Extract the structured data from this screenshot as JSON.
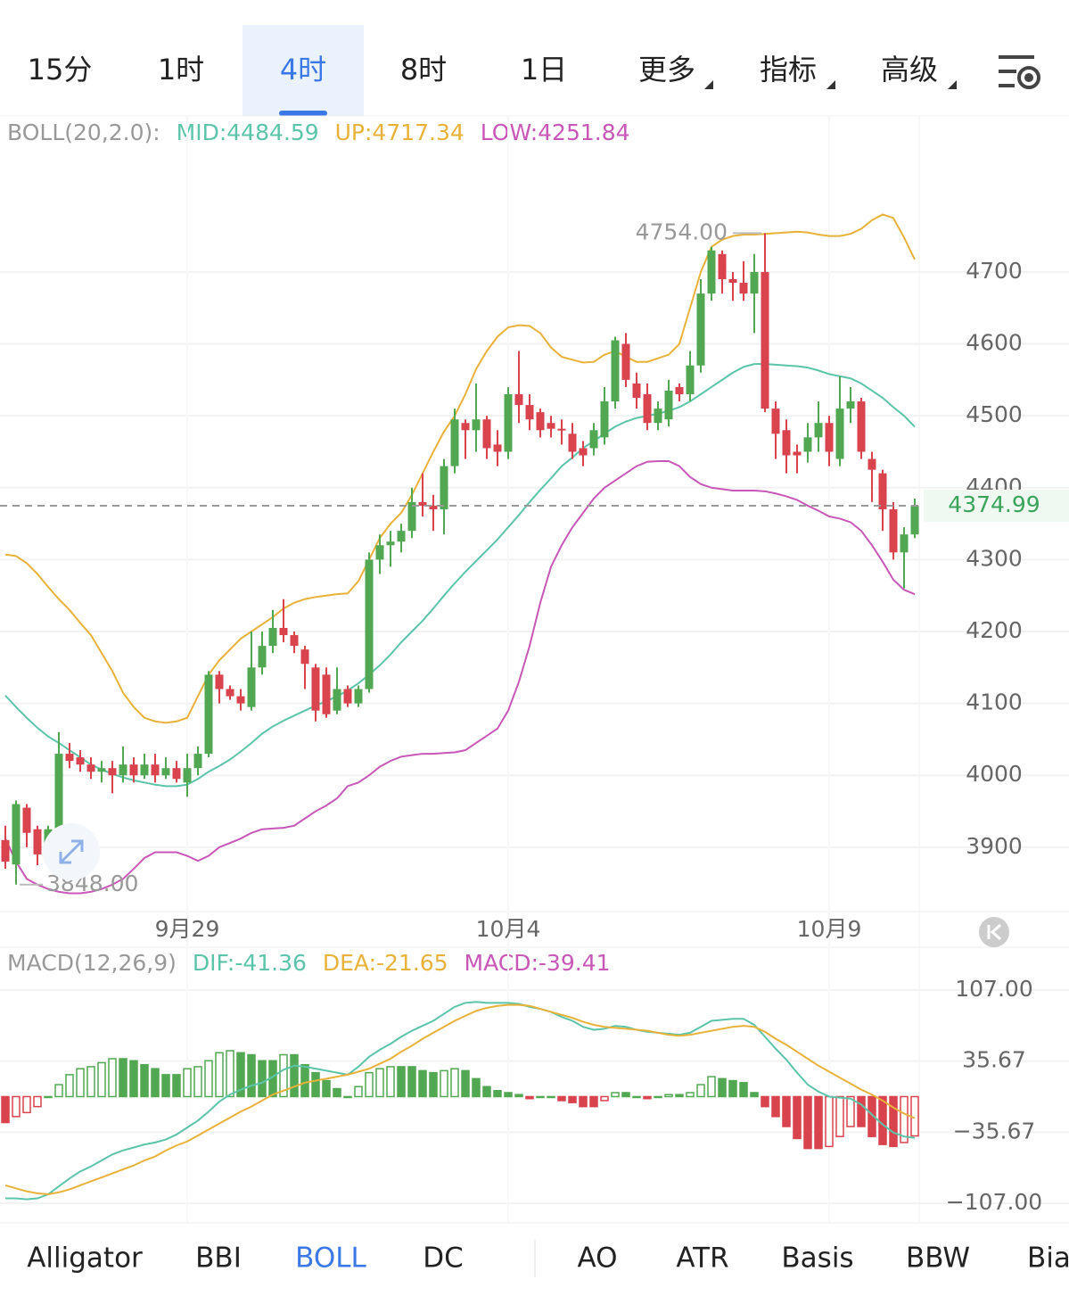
{
  "tabs": [
    "15分",
    "1时",
    "4时",
    "8时",
    "1日",
    "更多",
    "指标",
    "高级"
  ],
  "active_tab": "4时",
  "indicator_tabs": [
    "Alligator",
    "BBI",
    "BOLL",
    "DC",
    "AO",
    "ATR",
    "Basis",
    "BBW",
    "Bia"
  ],
  "active_indicator": "BOLL",
  "chart_data": [
    {
      "type": "candlestick",
      "legend_title": "BOLL(20,2.0):",
      "categories": [
        null,
        null,
        null,
        null,
        null,
        null,
        null,
        null,
        null,
        null,
        null,
        null,
        null,
        null,
        null,
        null,
        null,
        "9月29",
        null,
        null,
        null,
        null,
        null,
        null,
        null,
        null,
        null,
        null,
        null,
        null,
        null,
        null,
        null,
        null,
        null,
        null,
        null,
        null,
        null,
        null,
        null,
        null,
        null,
        null,
        null,
        null,
        null,
        "10月4",
        null,
        null,
        null,
        null,
        null,
        null,
        null,
        null,
        null,
        null,
        null,
        null,
        null,
        null,
        null,
        null,
        null,
        null,
        null,
        null,
        null,
        null,
        null,
        null,
        null,
        null,
        null,
        null,
        null,
        "10月9",
        null,
        null,
        null,
        null,
        null,
        null,
        null,
        null
      ],
      "open": [
        3910,
        3876,
        3955,
        3925,
        3890,
        3925,
        4030,
        4025,
        4015,
        4005,
        4010,
        4000,
        4015,
        4000,
        4015,
        4000,
        4010,
        3990,
        4010,
        4030,
        4140,
        4120,
        4110,
        4095,
        4150,
        4180,
        4205,
        4195,
        4175,
        4150,
        4140,
        4090,
        4120,
        4100,
        4120,
        4300,
        4320,
        4325,
        4340,
        4380,
        4375,
        4370,
        4430,
        4490,
        4480,
        4495,
        4460,
        4450,
        4530,
        4515,
        4505,
        4490,
        4482,
        4475,
        4455,
        4455,
        4470,
        4520,
        4600,
        4545,
        4530,
        4490,
        4495,
        4540,
        4530,
        4570,
        4670,
        4725,
        4690,
        4685,
        4670,
        4700,
        4510,
        4480,
        4450,
        4450,
        4470,
        4490,
        4440,
        4510,
        4520,
        4440,
        4420,
        4370,
        4310,
        4335
      ],
      "high": [
        3930,
        3965,
        3960,
        3930,
        3930,
        4060,
        4045,
        4035,
        4025,
        4020,
        4020,
        4040,
        4025,
        4030,
        4030,
        4025,
        4020,
        4030,
        4040,
        4145,
        4145,
        4125,
        4120,
        4200,
        4200,
        4230,
        4245,
        4200,
        4180,
        4155,
        4150,
        4150,
        4125,
        4125,
        4310,
        4335,
        4340,
        4350,
        4400,
        4420,
        4390,
        4440,
        4510,
        4495,
        4545,
        4500,
        4480,
        4540,
        4590,
        4530,
        4510,
        4500,
        4495,
        4490,
        4465,
        4490,
        4540,
        4610,
        4615,
        4560,
        4545,
        4520,
        4550,
        4545,
        4590,
        4690,
        4735,
        4730,
        4700,
        4715,
        4725,
        4754,
        4520,
        4495,
        4460,
        4490,
        4520,
        4500,
        4555,
        4540,
        4525,
        4450,
        4425,
        4380,
        4345,
        4385
      ],
      "low": [
        3870,
        3848,
        3900,
        3875,
        3880,
        3920,
        4010,
        4005,
        3995,
        3990,
        3975,
        3990,
        3990,
        3995,
        3990,
        3995,
        3990,
        3970,
        4000,
        4025,
        4100,
        4105,
        4090,
        4090,
        4140,
        4170,
        4185,
        4170,
        4120,
        4075,
        4080,
        4085,
        4095,
        4095,
        4115,
        4280,
        4290,
        4310,
        4330,
        4360,
        4340,
        4335,
        4420,
        4440,
        4450,
        4440,
        4430,
        4440,
        4490,
        4480,
        4470,
        4470,
        4460,
        4440,
        4430,
        4445,
        4460,
        4510,
        4540,
        4510,
        4480,
        4480,
        4485,
        4520,
        4520,
        4560,
        4660,
        4670,
        4660,
        4660,
        4615,
        4505,
        4440,
        4420,
        4420,
        4435,
        4450,
        4430,
        4430,
        4490,
        4440,
        4380,
        4340,
        4300,
        4260,
        4330
      ],
      "close": [
        3880,
        3960,
        3920,
        3890,
        3925,
        4030,
        4020,
        4015,
        4005,
        4010,
        4000,
        4015,
        4000,
        4015,
        4000,
        4010,
        3995,
        4010,
        4030,
        4140,
        4120,
        4110,
        4100,
        4150,
        4180,
        4205,
        4195,
        4180,
        4155,
        4090,
        4085,
        4120,
        4100,
        4120,
        4300,
        4320,
        4325,
        4340,
        4380,
        4375,
        4370,
        4430,
        4495,
        4480,
        4495,
        4455,
        4450,
        4530,
        4515,
        4495,
        4480,
        4482,
        4480,
        4450,
        4445,
        4480,
        4520,
        4605,
        4550,
        4525,
        4490,
        4510,
        4535,
        4530,
        4570,
        4670,
        4730,
        4690,
        4685,
        4670,
        4700,
        4510,
        4475,
        4445,
        4445,
        4470,
        4490,
        4450,
        4510,
        4520,
        4450,
        4425,
        4370,
        4310,
        4335,
        4374.99
      ],
      "up_color": "#52a852",
      "down_color": "#d9434d",
      "series": [
        {
          "label": "MID:4484.59",
          "color": "#5bc4a9",
          "values": [
            4111,
            4095,
            4080,
            4066,
            4054,
            4045,
            4035,
            4025,
            4015,
            4008,
            4002,
            3997,
            3993,
            3990,
            3987,
            3985,
            3985,
            3987,
            3995,
            4005,
            4013,
            4022,
            4033,
            4045,
            4058,
            4068,
            4076,
            4083,
            4090,
            4097,
            4103,
            4110,
            4118,
            4128,
            4140,
            4153,
            4168,
            4185,
            4200,
            4215,
            4232,
            4250,
            4267,
            4283,
            4298,
            4313,
            4328,
            4345,
            4362,
            4380,
            4397,
            4413,
            4430,
            4442,
            4455,
            4465,
            4475,
            4485,
            4492,
            4497,
            4500,
            4503,
            4507,
            4512,
            4520,
            4530,
            4540,
            4550,
            4560,
            4568,
            4572,
            4572,
            4571,
            4570,
            4569,
            4567,
            4563,
            4558,
            4555,
            4552,
            4545,
            4535,
            4525,
            4512,
            4500,
            4484.59
          ]
        },
        {
          "label": "UP:4717.34",
          "color": "#e8b23a",
          "values": [
            4307,
            4305,
            4295,
            4280,
            4262,
            4245,
            4230,
            4212,
            4195,
            4170,
            4145,
            4115,
            4095,
            4080,
            4075,
            4073,
            4075,
            4080,
            4110,
            4140,
            4160,
            4175,
            4190,
            4200,
            4210,
            4220,
            4232,
            4240,
            4245,
            4248,
            4250,
            4252,
            4253,
            4270,
            4300,
            4330,
            4350,
            4365,
            4390,
            4420,
            4450,
            4478,
            4500,
            4530,
            4565,
            4590,
            4610,
            4623,
            4626,
            4625,
            4615,
            4595,
            4582,
            4578,
            4574,
            4575,
            4585,
            4590,
            4582,
            4575,
            4575,
            4580,
            4585,
            4600,
            4650,
            4700,
            4735,
            4745,
            4750,
            4752,
            4752,
            4753,
            4754,
            4755,
            4756,
            4755,
            4752,
            4750,
            4750,
            4753,
            4760,
            4772,
            4780,
            4775,
            4748,
            4717.34
          ]
        },
        {
          "label": "LOW:4251.84",
          "color": "#c957b8",
          "values": [
            3912,
            3880,
            3856,
            3848,
            3842,
            3838,
            3836,
            3836,
            3838,
            3842,
            3848,
            3856,
            3870,
            3885,
            3893,
            3893,
            3893,
            3888,
            3881,
            3888,
            3900,
            3906,
            3912,
            3920,
            3925,
            3926,
            3927,
            3930,
            3940,
            3950,
            3958,
            3968,
            3985,
            3990,
            4000,
            4012,
            4020,
            4026,
            4028,
            4030,
            4030,
            4031,
            4032,
            4035,
            4045,
            4055,
            4065,
            4090,
            4130,
            4180,
            4240,
            4290,
            4320,
            4345,
            4365,
            4385,
            4400,
            4410,
            4420,
            4430,
            4436,
            4437,
            4437,
            4430,
            4415,
            4405,
            4400,
            4398,
            4396,
            4396,
            4396,
            4395,
            4392,
            4388,
            4383,
            4375,
            4368,
            4360,
            4357,
            4352,
            4340,
            4320,
            4297,
            4272,
            4258,
            4251.84
          ]
        }
      ],
      "ylim": [
        3813,
        4917
      ],
      "yticks": [
        3900,
        4000,
        4100,
        4200,
        4300,
        4400,
        4500,
        4600,
        4700
      ],
      "max_label": {
        "value": 4754,
        "label": "4754.00"
      },
      "min_label": {
        "value": 3848,
        "label": "3848.00"
      },
      "last_price": 4374.99,
      "last_price_color": "#3aa55a",
      "grid": true
    },
    {
      "type": "macd",
      "legend_title": "MACD(12,26,9)",
      "series": [
        {
          "label": "DIF:-41.36",
          "color": "#5bc4a9",
          "values": [
            -102,
            -102,
            -103,
            -102,
            -98,
            -90,
            -82,
            -75,
            -70,
            -64,
            -58,
            -54,
            -51,
            -48,
            -46,
            -43,
            -38,
            -31,
            -24,
            -15,
            -5,
            2,
            7,
            11,
            14,
            20,
            27,
            31,
            30,
            28,
            26,
            24,
            22,
            30,
            40,
            47,
            53,
            60,
            66,
            71,
            76,
            83,
            90,
            94,
            95,
            94,
            94,
            94,
            93,
            90,
            88,
            85,
            80,
            76,
            70,
            67,
            68,
            71,
            70,
            67,
            65,
            64,
            63,
            62,
            64,
            70,
            76,
            77,
            78,
            78,
            72,
            60,
            48,
            37,
            24,
            12,
            5,
            0,
            -1,
            -2,
            -8,
            -18,
            -28,
            -36,
            -40,
            -41.36
          ]
        },
        {
          "label": "DEA:-21.65",
          "color": "#e8b23a",
          "values": [
            -89,
            -92,
            -95,
            -97,
            -98,
            -96,
            -93,
            -89,
            -85,
            -81,
            -77,
            -73,
            -69,
            -64,
            -60,
            -54,
            -49,
            -45,
            -39,
            -33,
            -27,
            -21,
            -15,
            -10,
            -4,
            2,
            6,
            10,
            14,
            16,
            18,
            20,
            22,
            25,
            28,
            33,
            38,
            45,
            51,
            58,
            64,
            70,
            76,
            81,
            86,
            89,
            91,
            92,
            92,
            91,
            88,
            85,
            82,
            79,
            75,
            72,
            70,
            69,
            68,
            67,
            66,
            64,
            62,
            61,
            62,
            64,
            66,
            68,
            70,
            71,
            70,
            65,
            58,
            52,
            45,
            38,
            31,
            25,
            19,
            13,
            7,
            2,
            -4,
            -11,
            -17,
            -21.65
          ]
        }
      ],
      "histogram": {
        "label": "MACD:-39.41",
        "color": "#c957b8",
        "values": [
          -26,
          -20,
          -16,
          -10,
          0,
          12,
          22,
          28,
          30,
          34,
          38,
          38,
          36,
          32,
          28,
          22,
          22,
          28,
          30,
          36,
          44,
          46,
          44,
          42,
          36,
          36,
          42,
          42,
          32,
          24,
          16,
          8,
          0,
          10,
          24,
          28,
          30,
          30,
          30,
          26,
          24,
          26,
          28,
          26,
          18,
          10,
          6,
          4,
          2,
          -2,
          0,
          0,
          -4,
          -6,
          -10,
          -10,
          -4,
          4,
          4,
          0,
          -2,
          0,
          2,
          2,
          4,
          12,
          20,
          18,
          16,
          14,
          4,
          -10,
          -20,
          -30,
          -42,
          -52,
          -52,
          -50,
          -40,
          -30,
          -30,
          -40,
          -48,
          -50,
          -46,
          -39.41
        ]
      },
      "up_color": "#52a852",
      "down_color": "#d9434d",
      "ylim": [
        -125.7,
        147.1
      ],
      "yticks": [
        {
          "value": -107,
          "label": "−107.00"
        },
        {
          "value": -35.67,
          "label": "−35.67"
        },
        35.67,
        {
          "value": 107,
          "label": "107.00"
        }
      ],
      "grid": true
    }
  ]
}
